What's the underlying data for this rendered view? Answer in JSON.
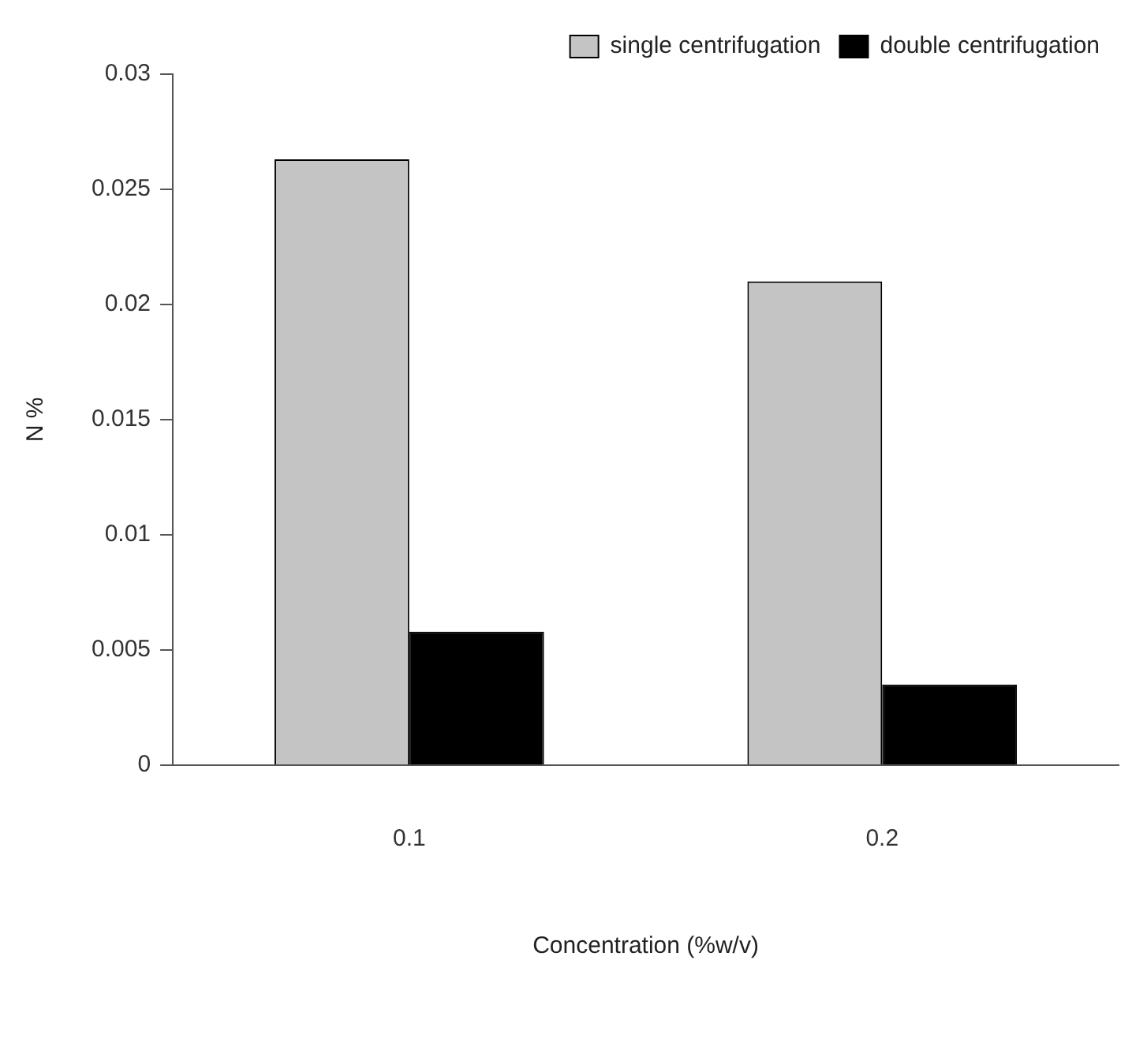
{
  "chart_data": {
    "type": "bar",
    "xlabel": "Concentration (%w/v)",
    "ylabel": "N %",
    "categories": [
      "0.1",
      "0.2"
    ],
    "series": [
      {
        "name": "single centrifugation",
        "color": "#c4c4c4",
        "values": [
          0.0263,
          0.021
        ]
      },
      {
        "name": "double centrifugation",
        "color": "#000000",
        "values": [
          0.0058,
          0.0035
        ]
      }
    ],
    "ylim": [
      0,
      0.03
    ],
    "yticks": [
      0,
      0.005,
      0.01,
      0.015,
      0.02,
      0.025,
      0.03
    ],
    "grid": false,
    "legend": "top right"
  }
}
